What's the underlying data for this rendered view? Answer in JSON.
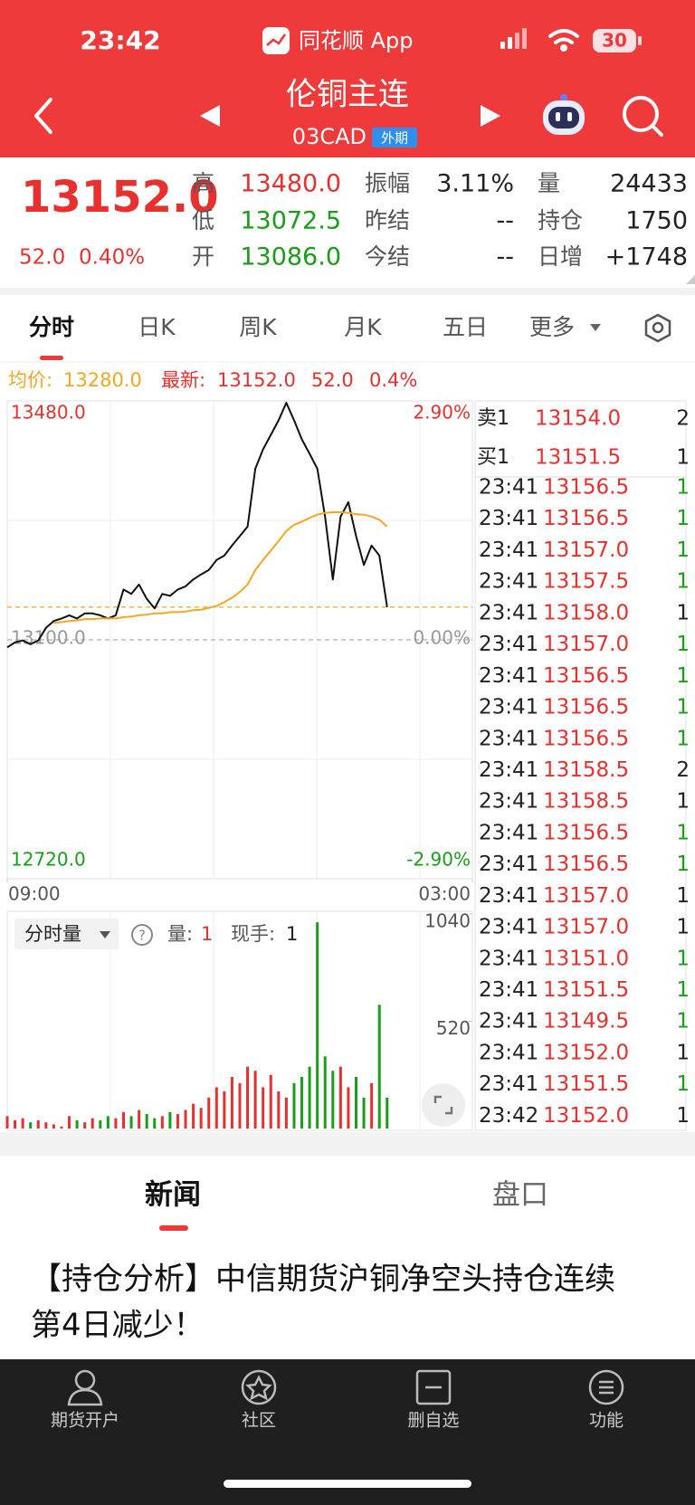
{
  "status_bar": {
    "time": "23:42",
    "app": "同花顺 App",
    "battery": "30"
  },
  "header": {
    "title": "伦铜主连",
    "code": "03CAD",
    "tag": "外期"
  },
  "quote": {
    "price": "13152.0",
    "change": "52.0",
    "change_pct": "0.40%",
    "fields": [
      {
        "label": "高",
        "value": "13480.0",
        "color": "#e8312f"
      },
      {
        "label": "振幅",
        "value": "3.11%",
        "color": "#222222"
      },
      {
        "label": "量",
        "value": "24433",
        "color": "#222222"
      },
      {
        "label": "低",
        "value": "13072.5",
        "color": "#1a9e1a"
      },
      {
        "label": "昨结",
        "value": "--",
        "color": "#222222"
      },
      {
        "label": "持仓",
        "value": "1750",
        "color": "#222222"
      },
      {
        "label": "开",
        "value": "13086.0",
        "color": "#1a9e1a"
      },
      {
        "label": "今结",
        "value": "--",
        "color": "#222222"
      },
      {
        "label": "日增",
        "value": "+1748",
        "color": "#222222"
      }
    ]
  },
  "tabs": [
    "分时",
    "日K",
    "周K",
    "月K",
    "五日",
    "更多"
  ],
  "summary": {
    "avg_label": "均价:",
    "avg": "13280.0",
    "last_label": "最新:",
    "last": "13152.0",
    "change": "52.0",
    "pct": "0.4%"
  },
  "chart_data": [
    {
      "type": "line",
      "xlim": [
        0,
        1080
      ],
      "xticks": [
        {
          "value": 0,
          "label": "09:00"
        },
        {
          "value": 1080,
          "label": "03:00"
        }
      ],
      "ylim": [
        12720,
        13480
      ],
      "yticks": [
        {
          "value": 13480,
          "label": "13480.0"
        },
        {
          "value": 13100,
          "label": "13100.0"
        },
        {
          "value": 12720,
          "label": "12720.0"
        }
      ],
      "y2lim": [
        -2.9,
        2.9
      ],
      "y2ticks": [
        {
          "value": 2.9,
          "label": "2.90%"
        },
        {
          "value": 0,
          "label": "0.00%"
        },
        {
          "value": -2.9,
          "label": "-2.90%"
        }
      ],
      "x": [
        0,
        18,
        36,
        54,
        72,
        90,
        108,
        126,
        144,
        162,
        180,
        198,
        216,
        234,
        252,
        270,
        288,
        306,
        324,
        342,
        360,
        378,
        396,
        414,
        432,
        450,
        468,
        486,
        504,
        522,
        540,
        558,
        576,
        594,
        612,
        630,
        648,
        666,
        684,
        702,
        720,
        738,
        756,
        774,
        792,
        810,
        828,
        846,
        864,
        882
      ],
      "series": [
        {
          "color": "#111111",
          "values": [
            13088,
            13096,
            13099,
            13093,
            13099,
            13119,
            13130,
            13134,
            13139,
            13134,
            13142,
            13142,
            13139,
            13134,
            13139,
            13180,
            13173,
            13188,
            13165,
            13150,
            13173,
            13170,
            13180,
            13185,
            13196,
            13204,
            13211,
            13227,
            13234,
            13250,
            13265,
            13280,
            13372,
            13403,
            13426,
            13449,
            13477,
            13449,
            13419,
            13396,
            13372,
            13296,
            13196,
            13296,
            13319,
            13265,
            13219,
            13250,
            13234,
            13152
          ]
        },
        {
          "color": "#f5a623",
          "values": [
            null,
            null,
            null,
            null,
            null,
            null,
            13127,
            13128,
            13130,
            13131,
            13133,
            13133,
            13134,
            13134,
            13134,
            13136,
            13137,
            13139,
            13140,
            13142,
            13142,
            13144,
            13144,
            13145,
            13147,
            13148,
            13151,
            13154,
            13160,
            13167,
            13176,
            13188,
            13211,
            13227,
            13242,
            13257,
            13273,
            13283,
            13288,
            13294,
            13299,
            13302,
            13303,
            13303,
            13302,
            13300,
            13299,
            13296,
            13291,
            13280
          ]
        }
      ]
    },
    {
      "type": "bar",
      "xlim": [
        0,
        1080
      ],
      "ylim": [
        0,
        1040
      ],
      "yticks": [
        1040,
        520
      ],
      "up_color": "#e8312f",
      "down_color": "#1a9e1a",
      "x": [
        0,
        18,
        36,
        54,
        72,
        90,
        108,
        126,
        144,
        162,
        180,
        198,
        216,
        234,
        252,
        270,
        288,
        306,
        324,
        342,
        360,
        378,
        396,
        414,
        432,
        450,
        468,
        486,
        504,
        522,
        540,
        558,
        576,
        594,
        612,
        630,
        648,
        666,
        684,
        702,
        720,
        738,
        756,
        774,
        792,
        810,
        828,
        846,
        864,
        882
      ],
      "values": [
        60,
        40,
        50,
        30,
        40,
        30,
        20,
        10,
        60,
        40,
        30,
        50,
        40,
        60,
        50,
        80,
        60,
        90,
        70,
        50,
        60,
        80,
        70,
        90,
        120,
        100,
        150,
        200,
        180,
        250,
        220,
        300,
        280,
        200,
        260,
        180,
        150,
        220,
        250,
        300,
        1000,
        350,
        280,
        300,
        200,
        250,
        150,
        220,
        600,
        150
      ]
    }
  ],
  "volume_header": {
    "title": "分时量",
    "vol_label": "量:",
    "vol": "1",
    "hand_label": "现手:",
    "hand": "1"
  },
  "order_book": [
    {
      "label": "卖1",
      "price": "13154.0",
      "volume": "2"
    },
    {
      "label": "买1",
      "price": "13151.5",
      "volume": "1"
    }
  ],
  "trades": [
    {
      "time": "23:41",
      "price": "13156.5",
      "volume": "1",
      "color": "#1a9e1a"
    },
    {
      "time": "23:41",
      "price": "13156.5",
      "volume": "1",
      "color": "#1a9e1a"
    },
    {
      "time": "23:41",
      "price": "13157.0",
      "volume": "1",
      "color": "#1a9e1a"
    },
    {
      "time": "23:41",
      "price": "13157.5",
      "volume": "1",
      "color": "#1a9e1a"
    },
    {
      "time": "23:41",
      "price": "13158.0",
      "volume": "1",
      "color": "#222222"
    },
    {
      "time": "23:41",
      "price": "13157.0",
      "volume": "1",
      "color": "#1a9e1a"
    },
    {
      "time": "23:41",
      "price": "13156.5",
      "volume": "1",
      "color": "#1a9e1a"
    },
    {
      "time": "23:41",
      "price": "13156.5",
      "volume": "1",
      "color": "#1a9e1a"
    },
    {
      "time": "23:41",
      "price": "13156.5",
      "volume": "1",
      "color": "#1a9e1a"
    },
    {
      "time": "23:41",
      "price": "13158.5",
      "volume": "2",
      "color": "#222222"
    },
    {
      "time": "23:41",
      "price": "13158.5",
      "volume": "1",
      "color": "#222222"
    },
    {
      "time": "23:41",
      "price": "13156.5",
      "volume": "1",
      "color": "#1a9e1a"
    },
    {
      "time": "23:41",
      "price": "13156.5",
      "volume": "1",
      "color": "#1a9e1a"
    },
    {
      "time": "23:41",
      "price": "13157.0",
      "volume": "1",
      "color": "#222222"
    },
    {
      "time": "23:41",
      "price": "13157.0",
      "volume": "1",
      "color": "#222222"
    },
    {
      "time": "23:41",
      "price": "13151.0",
      "volume": "1",
      "color": "#1a9e1a"
    },
    {
      "time": "23:41",
      "price": "13151.5",
      "volume": "1",
      "color": "#1a9e1a"
    },
    {
      "time": "23:41",
      "price": "13149.5",
      "volume": "1",
      "color": "#1a9e1a"
    },
    {
      "time": "23:41",
      "price": "13152.0",
      "volume": "1",
      "color": "#222222"
    },
    {
      "time": "23:41",
      "price": "13151.5",
      "volume": "1",
      "color": "#1a9e1a"
    },
    {
      "time": "23:42",
      "price": "13152.0",
      "volume": "1",
      "color": "#222222"
    }
  ],
  "news": {
    "tabs": [
      "新闻",
      "盘口"
    ],
    "headline_lines": [
      "【持仓分析】中信期货沪铜净空头持仓连续",
      "第4日减少！"
    ]
  },
  "nav": [
    "期货开户",
    "社区",
    "删自选",
    "功能"
  ]
}
